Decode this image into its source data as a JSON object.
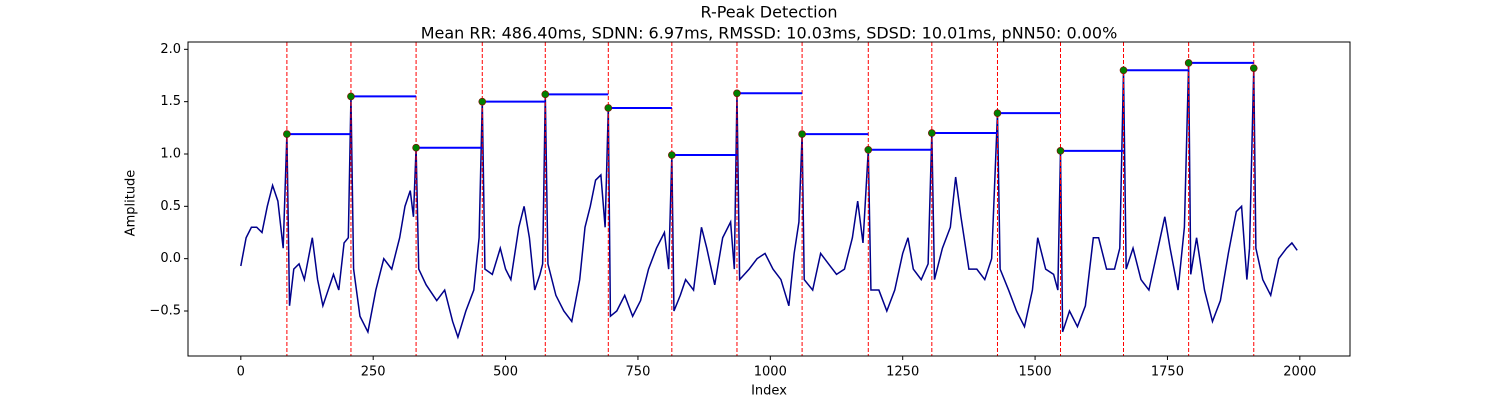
{
  "chart_data": {
    "type": "line",
    "title": "R-Peak Detection",
    "subtitle": "Mean RR: 486.40ms, SDNN: 6.97ms, RMSSD: 10.03ms, SDSD: 10.01ms, pNN50: 0.00%",
    "xlabel": "Index",
    "ylabel": "Amplitude",
    "xlim": [
      -99.75,
      2094.75
    ],
    "ylim": [
      -0.93,
      2.07
    ],
    "xticks": [
      0,
      250,
      500,
      750,
      1000,
      1250,
      1500,
      1750,
      2000
    ],
    "yticks": [
      {
        "value": -0.5,
        "label": "−0.5"
      },
      {
        "value": 0,
        "label": "0.0"
      },
      0.5,
      {
        "value": 1,
        "label": "1.0"
      },
      1.5,
      {
        "value": 2,
        "label": "2.0"
      }
    ],
    "color": "#00008b",
    "x": [
      0,
      10,
      20,
      30,
      40,
      50,
      60,
      70,
      80,
      87,
      92,
      100,
      110,
      120,
      135,
      145,
      155,
      165,
      175,
      185,
      195,
      203,
      208,
      213,
      225,
      240,
      255,
      270,
      285,
      300,
      310,
      320,
      326,
      331,
      336,
      350,
      370,
      385,
      400,
      410,
      425,
      440,
      450,
      456,
      461,
      475,
      490,
      500,
      510,
      525,
      535,
      545,
      555,
      565,
      570,
      575,
      580,
      595,
      610,
      625,
      640,
      650,
      660,
      670,
      680,
      688,
      694,
      698,
      710,
      725,
      740,
      755,
      770,
      785,
      800,
      808,
      814,
      818,
      830,
      840,
      855,
      870,
      880,
      895,
      910,
      925,
      932,
      937,
      942,
      960,
      975,
      990,
      1005,
      1020,
      1035,
      1045,
      1054,
      1060,
      1064,
      1080,
      1095,
      1110,
      1125,
      1140,
      1155,
      1165,
      1175,
      1185,
      1190,
      1205,
      1220,
      1235,
      1250,
      1260,
      1270,
      1285,
      1298,
      1305,
      1310,
      1325,
      1340,
      1350,
      1360,
      1375,
      1390,
      1405,
      1418,
      1429,
      1434,
      1450,
      1465,
      1480,
      1495,
      1505,
      1520,
      1535,
      1543,
      1548,
      1552,
      1565,
      1580,
      1595,
      1610,
      1620,
      1635,
      1650,
      1660,
      1667,
      1672,
      1685,
      1700,
      1715,
      1730,
      1745,
      1755,
      1770,
      1782,
      1790,
      1794,
      1805,
      1820,
      1835,
      1850,
      1865,
      1880,
      1890,
      1900,
      1905,
      1913,
      1917,
      1930,
      1945,
      1960,
      1975,
      1985,
      1995
    ],
    "values": [
      -0.07,
      0.2,
      0.3,
      0.3,
      0.25,
      0.5,
      0.7,
      0.55,
      0.1,
      1.19,
      -0.45,
      -0.1,
      -0.05,
      -0.2,
      0.2,
      -0.2,
      -0.45,
      -0.3,
      -0.15,
      -0.3,
      0.15,
      0.2,
      1.55,
      -0.1,
      -0.55,
      -0.7,
      -0.3,
      0,
      -0.1,
      0.2,
      0.5,
      0.65,
      0.4,
      1.06,
      -0.1,
      -0.25,
      -0.4,
      -0.3,
      -0.6,
      -0.75,
      -0.5,
      -0.3,
      0.2,
      1.5,
      -0.1,
      -0.15,
      0.1,
      -0.1,
      -0.2,
      0.3,
      0.5,
      0.2,
      -0.3,
      -0.15,
      -0.05,
      1.57,
      -0.05,
      -0.35,
      -0.5,
      -0.6,
      -0.2,
      0.3,
      0.5,
      0.75,
      0.8,
      0.3,
      1.44,
      -0.55,
      -0.5,
      -0.35,
      -0.55,
      -0.4,
      -0.1,
      0.1,
      0.25,
      -0.1,
      0.99,
      -0.5,
      -0.35,
      -0.2,
      -0.3,
      0.3,
      0.1,
      -0.25,
      0.2,
      0.35,
      -0.1,
      1.58,
      -0.2,
      -0.1,
      0,
      0.05,
      -0.1,
      -0.2,
      -0.45,
      0.05,
      0.35,
      1.19,
      -0.2,
      -0.3,
      0.05,
      -0.05,
      -0.15,
      -0.1,
      0.2,
      0.55,
      0.15,
      1.04,
      -0.3,
      -0.3,
      -0.5,
      -0.3,
      0.05,
      0.2,
      -0.1,
      -0.2,
      -0.05,
      1.2,
      -0.2,
      0.1,
      0.3,
      0.78,
      0.4,
      -0.1,
      -0.1,
      -0.2,
      0,
      1.39,
      -0.1,
      -0.3,
      -0.5,
      -0.65,
      -0.3,
      0.2,
      -0.1,
      -0.15,
      -0.3,
      1.03,
      -0.7,
      -0.5,
      -0.65,
      -0.45,
      0.2,
      0.2,
      -0.1,
      -0.1,
      0.1,
      1.8,
      -0.1,
      0.1,
      -0.2,
      -0.3,
      0.05,
      0.4,
      0.1,
      -0.3,
      0.3,
      1.87,
      -0.15,
      0.2,
      -0.3,
      -0.6,
      -0.4,
      0.05,
      0.45,
      0.5,
      -0.2,
      0.1,
      1.82,
      0.1,
      -0.2,
      -0.35,
      0,
      0.1,
      0.15,
      0.08
    ],
    "peaks": {
      "color": "#008000",
      "line_color": "#ff0000",
      "level_color": "#0000ff",
      "x": [
        87,
        208,
        331,
        456,
        575,
        694,
        814,
        937,
        1060,
        1185,
        1305,
        1429,
        1548,
        1667,
        1790,
        1913
      ],
      "values": [
        1.19,
        1.55,
        1.06,
        1.5,
        1.57,
        1.44,
        0.99,
        1.58,
        1.19,
        1.04,
        1.2,
        1.39,
        1.03,
        1.8,
        1.87,
        1.82
      ]
    }
  }
}
